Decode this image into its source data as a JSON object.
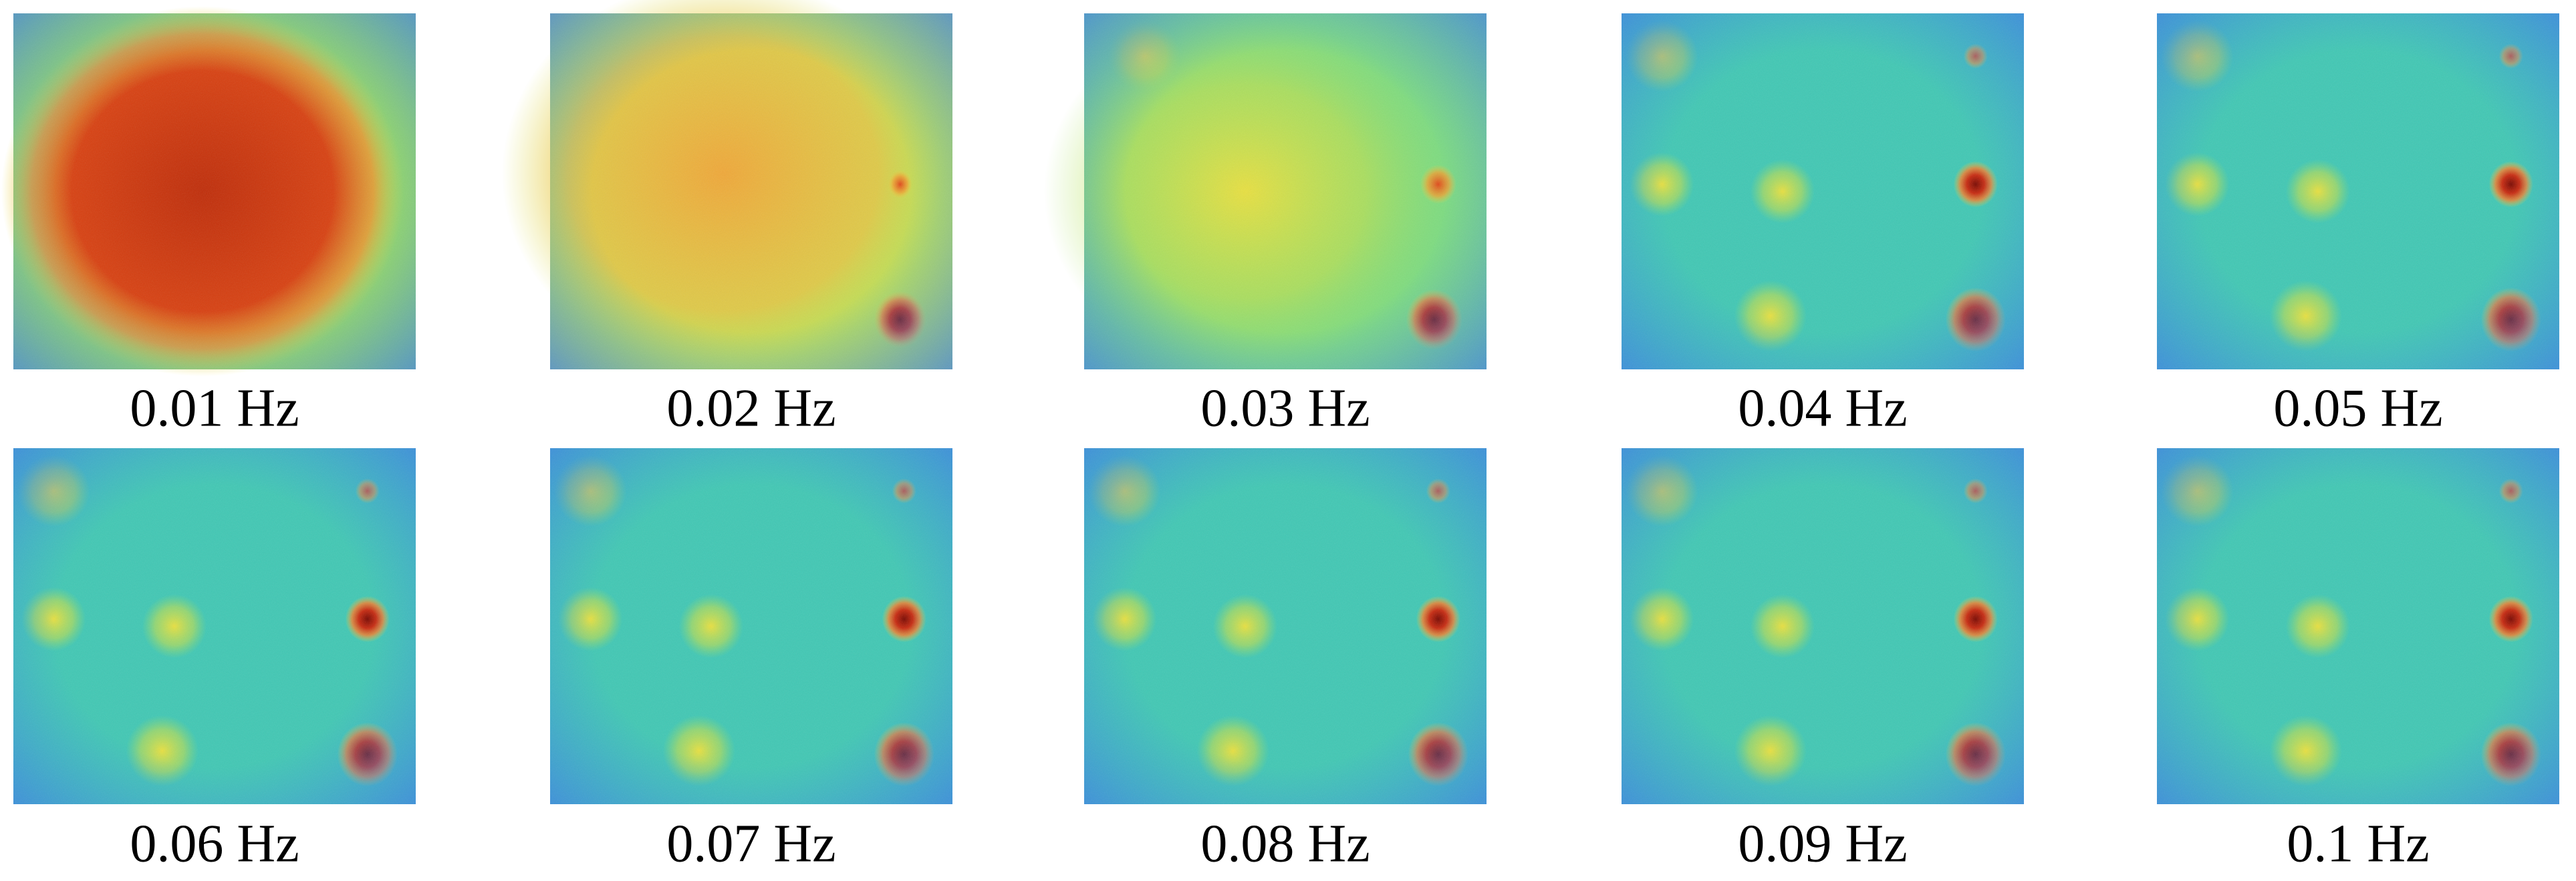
{
  "panels": [
    {
      "label": "0.01 Hz"
    },
    {
      "label": "0.02 Hz"
    },
    {
      "label": "0.03 Hz"
    },
    {
      "label": "0.04 Hz"
    },
    {
      "label": "0.05 Hz"
    },
    {
      "label": "0.06 Hz"
    },
    {
      "label": "0.07 Hz"
    },
    {
      "label": "0.08 Hz"
    },
    {
      "label": "0.09 Hz"
    },
    {
      "label": "0.1 Hz"
    }
  ]
}
